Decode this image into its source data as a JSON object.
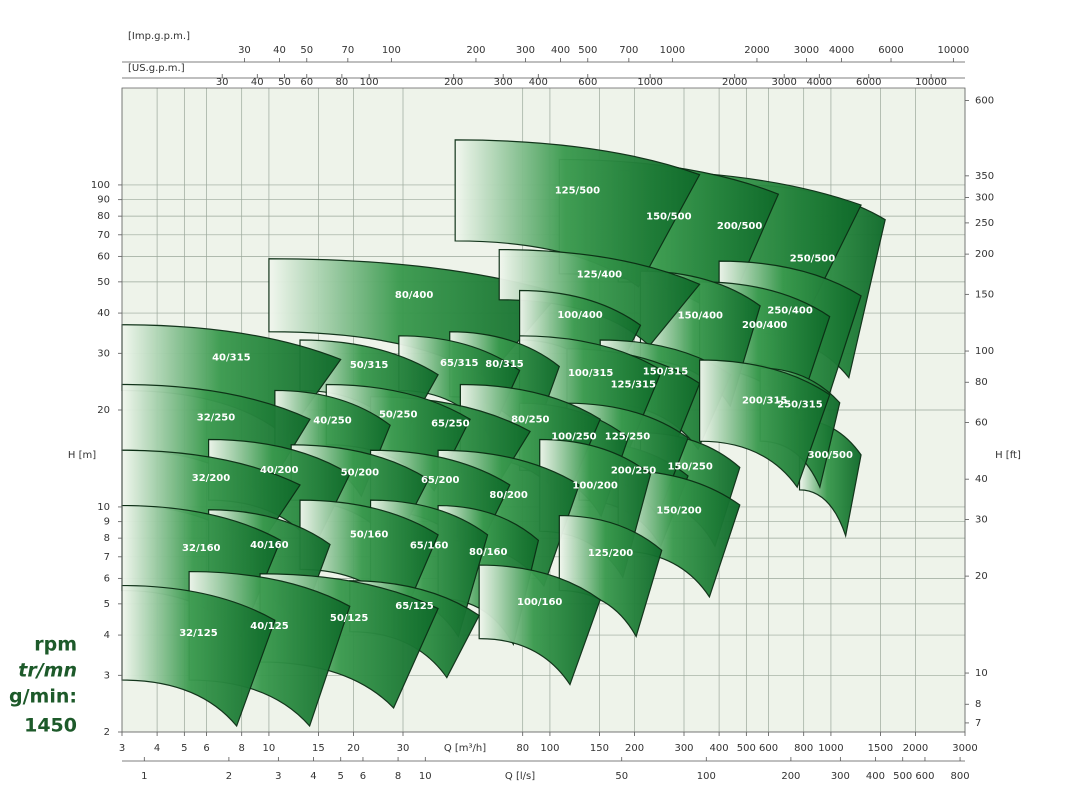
{
  "chart_data": {
    "type": "coverage",
    "xlabel": "Q [m³/h]",
    "ylabel": "H [m]",
    "y2label": "H [ft]",
    "xlog": true,
    "ylog": true,
    "grid": true,
    "color": "#1b7d35",
    "xlim": [
      3,
      3000
    ],
    "xticks": [
      3,
      4,
      5,
      6,
      8,
      10,
      15,
      20,
      30,
      80,
      100,
      150,
      200,
      300,
      400,
      500,
      600,
      800,
      1000,
      1500,
      2000,
      3000
    ],
    "ylim": [
      2,
      200
    ],
    "yticks": [
      2,
      3,
      4,
      5,
      6,
      7,
      8,
      9,
      10,
      20,
      30,
      40,
      50,
      60,
      70,
      80,
      90,
      100
    ],
    "y2lim": [
      6.56,
      656
    ],
    "y2ticks": [
      7,
      8,
      10,
      20,
      30,
      40,
      60,
      80,
      100,
      150,
      200,
      250,
      300,
      350,
      600
    ],
    "q_axes": [
      {
        "label": "[Imp.g.p.m.]",
        "position": "top",
        "lim": [
          11,
          11000
        ],
        "ticks": [
          30,
          40,
          50,
          70,
          100,
          200,
          300,
          400,
          500,
          700,
          1000,
          2000,
          3000,
          4000,
          6000,
          10000
        ]
      },
      {
        "label": "[US.g.p.m.]",
        "position": "top",
        "lim": [
          13.2,
          13200
        ],
        "ticks": [
          30,
          40,
          50,
          60,
          80,
          100,
          200,
          300,
          400,
          600,
          1000,
          2000,
          3000,
          4000,
          6000,
          10000
        ]
      },
      {
        "label": "Q [l/s]",
        "position": "bottom",
        "lim": [
          0.833,
          833
        ],
        "ticks": [
          1,
          2,
          3,
          4,
          5,
          6,
          8,
          10,
          50,
          100,
          200,
          300,
          400,
          500,
          600,
          800
        ]
      }
    ],
    "speed_labels": [
      "rpm",
      "tr/mn",
      "g/min:"
    ],
    "speed": 1450,
    "regions": [
      {
        "name": "32/125",
        "q": [
          3,
          10.5
        ],
        "h": [
          2.9,
          5.7
        ]
      },
      {
        "name": "40/125",
        "q": [
          5.2,
          19.4
        ],
        "h": [
          2.9,
          6.3
        ]
      },
      {
        "name": "50/125",
        "q": [
          9.3,
          40
        ],
        "h": [
          3.3,
          6.2
        ]
      },
      {
        "name": "65/125",
        "q": [
          19.4,
          56
        ],
        "h": [
          4.1,
          5.9
        ]
      },
      {
        "name": "100/160",
        "q": [
          56,
          151
        ],
        "h": [
          3.9,
          6.6
        ]
      },
      {
        "name": "32/160",
        "q": [
          3,
          11
        ],
        "h": [
          5.5,
          10.1
        ]
      },
      {
        "name": "40/160",
        "q": [
          6.1,
          16.5
        ],
        "h": [
          5.9,
          9.8
        ]
      },
      {
        "name": "50/160",
        "q": [
          12.9,
          40
        ],
        "h": [
          6.4,
          10.5
        ]
      },
      {
        "name": "65/160",
        "q": [
          23,
          60
        ],
        "h": [
          5.5,
          10.5
        ]
      },
      {
        "name": "80/160",
        "q": [
          40,
          91
        ],
        "h": [
          5.2,
          10.1
        ]
      },
      {
        "name": "125/200",
        "q": [
          108,
          250
        ],
        "h": [
          5.5,
          9.4
        ]
      },
      {
        "name": "32/200",
        "q": [
          3,
          12.9
        ],
        "h": [
          10.1,
          15
        ]
      },
      {
        "name": "40/200",
        "q": [
          6.1,
          19.4
        ],
        "h": [
          10.5,
          16.2
        ]
      },
      {
        "name": "50/200",
        "q": [
          12,
          37
        ],
        "h": [
          10.5,
          15.6
        ]
      },
      {
        "name": "65/200",
        "q": [
          23,
          72
        ],
        "h": [
          9.8,
          15
        ]
      },
      {
        "name": "80/200",
        "q": [
          40,
          127
        ],
        "h": [
          7.9,
          15
        ]
      },
      {
        "name": "100/200",
        "q": [
          92,
          228
        ],
        "h": [
          8.4,
          16.2
        ]
      },
      {
        "name": "150/200",
        "q": [
          175,
          474
        ],
        "h": [
          7.3,
          13
        ]
      },
      {
        "name": "32/250",
        "q": [
          3,
          14
        ],
        "h": [
          15,
          24
        ]
      },
      {
        "name": "40/250",
        "q": [
          10.5,
          27
        ],
        "h": [
          15,
          23
        ]
      },
      {
        "name": "50/250",
        "q": [
          16,
          52
        ],
        "h": [
          15.6,
          24
        ]
      },
      {
        "name": "65/250",
        "q": [
          23,
          85
        ],
        "h": [
          15,
          22
        ]
      },
      {
        "name": "80/250",
        "q": [
          48,
          151
        ],
        "h": [
          14.5,
          24
        ]
      },
      {
        "name": "100/250",
        "q": [
          78,
          190
        ],
        "h": [
          13,
          21
        ]
      },
      {
        "name": "125/250",
        "q": [
          115,
          310
        ],
        "h": [
          13,
          21
        ]
      },
      {
        "name": "200/250",
        "q": [
          127,
          310
        ],
        "h": [
          10.5,
          16
        ]
      },
      {
        "name": "150/250",
        "q": [
          210,
          474
        ],
        "h": [
          10.5,
          17
        ]
      },
      {
        "name": "200/315",
        "q": [
          341,
          990
        ],
        "h": [
          16,
          28.6
        ]
      },
      {
        "name": "250/315",
        "q": [
          560,
          1075
        ],
        "h": [
          16,
          27
        ]
      },
      {
        "name": "300/500",
        "q": [
          773,
          1280
        ],
        "h": [
          11.3,
          18.6
        ]
      },
      {
        "name": "40/315",
        "q": [
          3,
          18
        ],
        "h": [
          23,
          36.8
        ]
      },
      {
        "name": "50/315",
        "q": [
          12.9,
          40
        ],
        "h": [
          23,
          33
        ]
      },
      {
        "name": "65/315",
        "q": [
          29,
          78
        ],
        "h": [
          23,
          34
        ]
      },
      {
        "name": "80/315",
        "q": [
          44,
          108
        ],
        "h": [
          22,
          35
        ]
      },
      {
        "name": "100/315",
        "q": [
          78,
          250
        ],
        "h": [
          20,
          34
        ]
      },
      {
        "name": "125/315",
        "q": [
          115,
          341
        ],
        "h": [
          18.6,
          31
        ]
      },
      {
        "name": "150/315",
        "q": [
          151,
          440
        ],
        "h": [
          21,
          33
        ]
      },
      {
        "name": "100/400",
        "q": [
          78,
          210
        ],
        "h": [
          33,
          47
        ]
      },
      {
        "name": "125/400",
        "q": [
          66,
          341
        ],
        "h": [
          44,
          63
        ]
      },
      {
        "name": "150/400",
        "q": [
          210,
          560
        ],
        "h": [
          28.6,
          54
        ]
      },
      {
        "name": "200/400",
        "q": [
          341,
          990
        ],
        "h": [
          27,
          50
        ]
      },
      {
        "name": "250/400",
        "q": [
          400,
          1280
        ],
        "h": [
          28.6,
          58
        ]
      },
      {
        "name": "80/400",
        "q": [
          10,
          108
        ],
        "h": [
          35,
          59
        ]
      },
      {
        "name": "125/500",
        "q": [
          46,
          341
        ],
        "h": [
          67,
          138
        ]
      },
      {
        "name": "150/500",
        "q": [
          108,
          650
        ],
        "h": [
          53,
          120
        ]
      },
      {
        "name": "200/500",
        "q": [
          175,
          1280
        ],
        "h": [
          50,
          111
        ]
      },
      {
        "name": "250/500",
        "q": [
          474,
          1560
        ],
        "h": [
          35,
          100
        ]
      }
    ]
  }
}
